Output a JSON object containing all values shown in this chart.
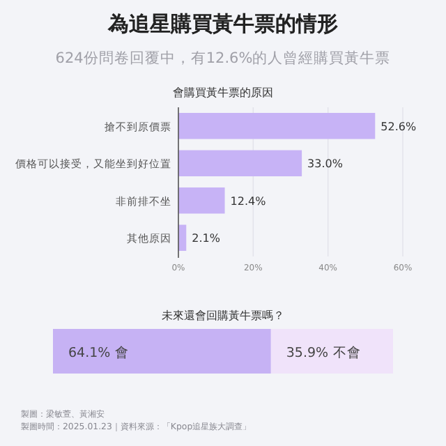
{
  "chart_data": [
    {
      "type": "other",
      "title": "為追星購買黃牛票的情形",
      "subtitle": "624份問卷回覆中，有12.6%的人曾經購買黃牛票"
    },
    {
      "type": "bar",
      "orientation": "horizontal",
      "title": "會購買黃牛票的原因",
      "categories": [
        "搶不到原價票",
        "價格可以接受，又能坐到好位置",
        "非前排不坐",
        "其他原因"
      ],
      "values": [
        52.6,
        33.0,
        12.4,
        2.1
      ],
      "value_labels": [
        "52.6%",
        "33.0%",
        "12.4%",
        "2.1%"
      ],
      "color": "#c7b3f6",
      "xlim": [
        0,
        60
      ],
      "xticks": [
        {
          "value": 0,
          "label": "0%"
        },
        {
          "value": 20,
          "label": "20%"
        },
        {
          "value": 40,
          "label": "40%"
        },
        {
          "value": 60,
          "label": "60%"
        }
      ],
      "grid": "x"
    },
    {
      "type": "bar",
      "orientation": "horizontal",
      "stacked": true,
      "title": "未來還會回購黃牛票嗎？",
      "categories": [
        null
      ],
      "series": [
        {
          "name": "會",
          "color": "#c6b2f4",
          "values": [
            64.1
          ],
          "value_labels": [
            "64.1%"
          ]
        },
        {
          "name": "不會",
          "color": "#f0e3fa",
          "values": [
            35.9
          ],
          "value_labels": [
            "35.9%"
          ]
        }
      ],
      "annotations": [
        "製圖：梁敏萱、黃湘安",
        "製圖時間：2025.01.23｜資料來源：「Kpop追星族大調查」"
      ]
    }
  ]
}
